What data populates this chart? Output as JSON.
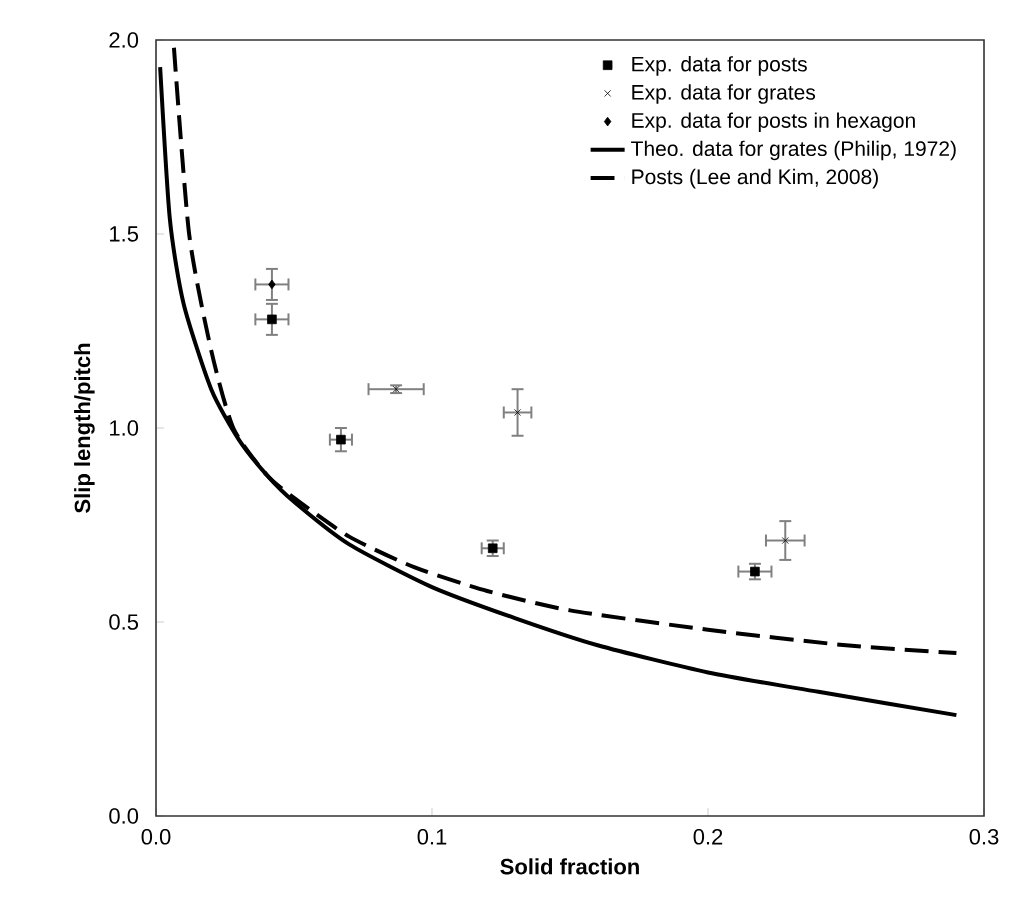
{
  "chart_data": {
    "type": "scatter",
    "xlabel": "Solid fraction",
    "ylabel": "Slip length/pitch",
    "xlim": [
      0,
      0.3
    ],
    "ylim": [
      0,
      2.0
    ],
    "xticks": [
      {
        "value": 0,
        "label": "0.0"
      },
      0.1,
      0.2,
      0.3
    ],
    "yticks": [
      {
        "value": 0,
        "label": "0.0"
      },
      0.5,
      {
        "value": 1,
        "label": "1.0"
      },
      1.5,
      {
        "value": 2,
        "label": "2.0"
      }
    ],
    "grid": false,
    "legend": "top right",
    "series": [
      {
        "name": "Exp. data for posts",
        "marker": "square",
        "color": "#000000",
        "x": [
          0.042,
          0.067,
          0.122,
          0.217
        ],
        "values": [
          1.28,
          0.97,
          0.69,
          0.63
        ],
        "errors": [
          0.04,
          0.03,
          0.02,
          0.02
        ],
        "xerrors": [
          0.006,
          0.004,
          0.004,
          0.006
        ]
      },
      {
        "name": "Exp. data for grates",
        "marker": "cross",
        "color": "#000000",
        "x": [
          0.087,
          0.131,
          0.228
        ],
        "values": [
          1.1,
          1.04,
          0.71
        ],
        "errors": [
          0.01,
          0.06,
          0.05
        ],
        "xerrors": [
          0.01,
          0.005,
          0.007
        ]
      },
      {
        "name": "Exp. data for posts in hexagon",
        "marker": "diamond",
        "color": "#000000",
        "x": [
          0.042
        ],
        "values": [
          1.37
        ],
        "errors": [
          0.04
        ],
        "xerrors": [
          0.006
        ]
      },
      {
        "name": "Theo. data for grates (Philip, 1972)",
        "type": "line",
        "line_style": "solid",
        "color": "#000000",
        "x": [
          0.0015,
          0.005,
          0.01,
          0.02,
          0.03,
          0.04,
          0.05,
          0.07,
          0.1,
          0.13,
          0.16,
          0.2,
          0.24,
          0.29
        ],
        "values": [
          1.93,
          1.54,
          1.32,
          1.1,
          0.97,
          0.88,
          0.81,
          0.7,
          0.59,
          0.51,
          0.44,
          0.37,
          0.32,
          0.26
        ]
      },
      {
        "name": "Posts (Lee and Kim, 2008)",
        "type": "line",
        "line_style": "dashed",
        "color": "#000000",
        "x": [
          0.0065,
          0.012,
          0.02,
          0.028,
          0.04,
          0.05,
          0.07,
          0.094,
          0.12,
          0.15,
          0.2,
          0.25,
          0.29
        ],
        "values": [
          1.98,
          1.5,
          1.2,
          1.0,
          0.88,
          0.82,
          0.72,
          0.64,
          0.58,
          0.53,
          0.48,
          0.44,
          0.42
        ]
      }
    ]
  }
}
